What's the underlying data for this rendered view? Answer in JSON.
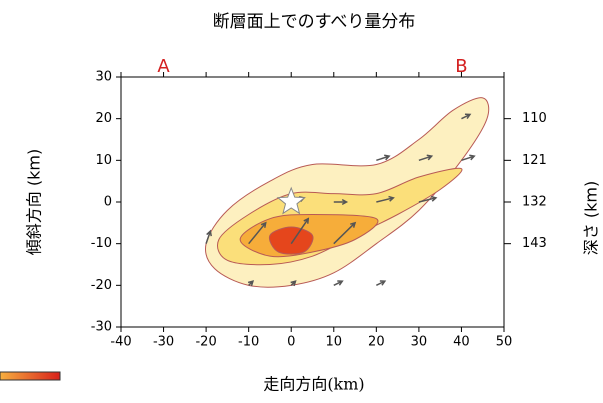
{
  "chart_data": {
    "type": "contour",
    "title": "断層面上でのすべり量分布",
    "x_label": "走向方向(km)",
    "y_label": "傾斜方向 (km)",
    "y2_label": "深さ (km)",
    "annotations": [
      {
        "text": "A",
        "x": -30
      },
      {
        "text": "B",
        "x": 40
      }
    ],
    "xlim": [
      -40,
      50
    ],
    "ylim": [
      -30,
      30
    ],
    "y2lim": [
      165,
      99
    ],
    "xticks": [
      -40,
      -30,
      -20,
      -10,
      0,
      10,
      20,
      30,
      40,
      50
    ],
    "yticks": [
      -30,
      -20,
      -10,
      0,
      10,
      20,
      30
    ],
    "y2ticks": [
      110,
      121,
      132,
      143
    ],
    "contours": [
      {
        "color": "#fdf0c0",
        "x": [
          -20,
          -15,
          -5,
          5,
          20,
          30,
          38,
          45,
          46,
          40,
          30,
          20,
          10,
          0,
          -10,
          -18
        ],
        "y": [
          -10,
          -2,
          5,
          9,
          9,
          15,
          22,
          25,
          20,
          10,
          -2,
          -10,
          -17,
          -20,
          -20,
          -16
        ]
      },
      {
        "color": "#fbdf7a",
        "x": [
          -17,
          -10,
          0,
          10,
          20,
          30,
          40,
          35,
          25,
          15,
          5,
          -5,
          -15
        ],
        "y": [
          -9,
          -3,
          2,
          2,
          2,
          6,
          8,
          3,
          -3,
          -8,
          -13,
          -15,
          -14
        ]
      },
      {
        "color": "#f6ad3a",
        "x": [
          -12,
          -5,
          5,
          20,
          15,
          5,
          -5
        ],
        "y": [
          -9,
          -4,
          -3,
          -4,
          -9,
          -12,
          -13
        ]
      },
      {
        "color": "#e5461c",
        "x": [
          -5,
          0,
          5,
          3,
          -3
        ],
        "y": [
          -8,
          -6,
          -8,
          -12,
          -12
        ]
      }
    ],
    "vectors": {
      "color": "#555",
      "x": [
        -20,
        -10,
        0,
        10,
        20,
        30,
        40,
        -10,
        0,
        10,
        20,
        30,
        40,
        0,
        10,
        20
      ],
      "y": [
        -10,
        -10,
        -10,
        -10,
        0,
        0,
        10,
        -20,
        -20,
        -20,
        -20,
        10,
        20,
        0,
        0,
        10
      ],
      "dx": [
        1,
        4,
        4,
        5,
        4,
        4,
        3,
        1,
        1,
        2,
        2,
        3,
        2,
        3,
        3,
        3
      ],
      "dy": [
        3,
        5,
        6,
        5,
        1,
        1,
        1,
        1,
        1,
        1,
        1,
        1,
        1,
        1,
        0,
        1
      ]
    },
    "hypocenter": {
      "x": 0,
      "y": 0
    }
  }
}
